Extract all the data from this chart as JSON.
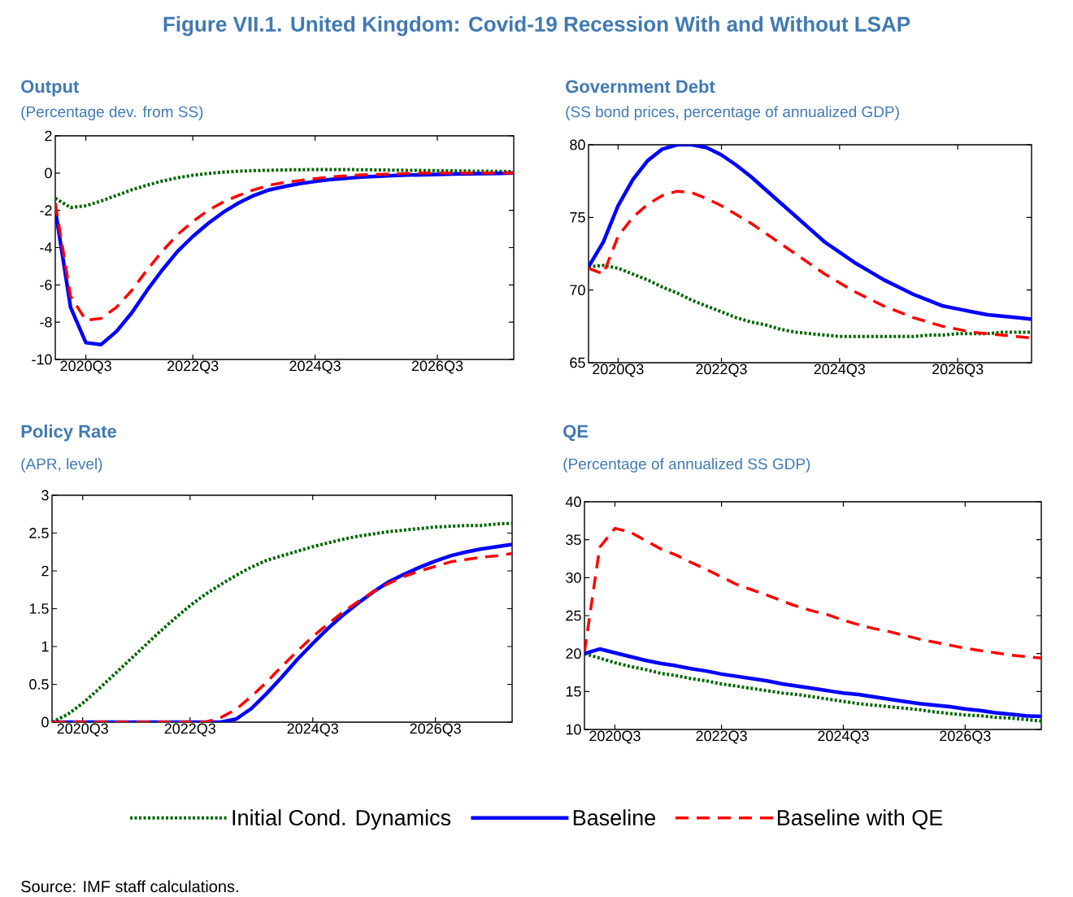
{
  "chart_data": [
    {
      "type": "line",
      "title": "Output",
      "subtitle": "(Percentage dev. from SS)",
      "legend": "bottom",
      "annotations": [
        "Figure VII.1. United Kingdom: Covid-19 Recession With and Without LSAP",
        "Source: IMF staff calculations."
      ],
      "categories": [
        null,
        null,
        "2020Q3",
        null,
        null,
        null,
        null,
        null,
        null,
        "2022Q3",
        null,
        null,
        null,
        null,
        null,
        null,
        null,
        "2024Q3",
        null,
        null,
        null,
        null,
        null,
        null,
        null,
        "2026Q3",
        null,
        null,
        null,
        null,
        null
      ],
      "ylim": [
        -10,
        2
      ],
      "yticks": [
        -10,
        -8,
        -6,
        -4,
        -2,
        0,
        2
      ],
      "series": [
        {
          "name": "Initial Cond. Dynamics",
          "color": "#006600",
          "line_style": "dotted",
          "values": [
            -1.35,
            -1.85,
            -1.75,
            -1.5,
            -1.2,
            -0.9,
            -0.65,
            -0.43,
            -0.25,
            -0.12,
            -0.02,
            0.05,
            0.1,
            0.13,
            0.15,
            0.17,
            0.18,
            0.19,
            0.19,
            0.19,
            0.18,
            0.17,
            0.16,
            0.15,
            0.14,
            0.13,
            0.12,
            0.11,
            0.1,
            0.09,
            0.08
          ]
        },
        {
          "name": "Baseline",
          "color": "#0000ff",
          "line_style": "solid",
          "values": [
            -1.95,
            -7.2,
            -9.1,
            -9.2,
            -8.5,
            -7.5,
            -6.3,
            -5.2,
            -4.2,
            -3.4,
            -2.7,
            -2.1,
            -1.6,
            -1.2,
            -0.9,
            -0.72,
            -0.57,
            -0.45,
            -0.35,
            -0.28,
            -0.22,
            -0.18,
            -0.14,
            -0.11,
            -0.09,
            -0.07,
            -0.05,
            -0.04,
            -0.03,
            -0.02,
            0
          ]
        },
        {
          "name": "Baseline with QE",
          "color": "#ff0000",
          "line_style": "dashed",
          "values": [
            -1.6,
            -6.6,
            -7.9,
            -7.8,
            -7.2,
            -6.3,
            -5.2,
            -4.2,
            -3.3,
            -2.6,
            -2.0,
            -1.55,
            -1.2,
            -0.9,
            -0.65,
            -0.5,
            -0.4,
            -0.3,
            -0.2,
            -0.15,
            -0.1,
            -0.07,
            -0.05,
            -0.02,
            0,
            0,
            0,
            0,
            0,
            0,
            0
          ]
        }
      ]
    },
    {
      "type": "line",
      "title": "Government Debt",
      "subtitle": "(SS bond prices, percentage of annualized GDP)",
      "categories": [
        null,
        null,
        "2020Q3",
        null,
        null,
        null,
        null,
        null,
        null,
        "2022Q3",
        null,
        null,
        null,
        null,
        null,
        null,
        null,
        "2024Q3",
        null,
        null,
        null,
        null,
        null,
        null,
        null,
        "2026Q3",
        null,
        null,
        null,
        null,
        null
      ],
      "ylim": [
        65,
        80
      ],
      "yticks": [
        65,
        70,
        75,
        80
      ],
      "series": [
        {
          "color": "#006600",
          "line_style": "dotted",
          "values": [
            71.6,
            71.7,
            71.5,
            71.1,
            70.7,
            70.2,
            69.8,
            69.3,
            68.9,
            68.5,
            68.1,
            67.8,
            67.6,
            67.3,
            67.1,
            67.0,
            66.9,
            66.8,
            66.8,
            66.8,
            66.8,
            66.8,
            66.8,
            66.9,
            66.9,
            67.0,
            67.0,
            67.0,
            67.1,
            67.1,
            67.1
          ]
        },
        {
          "color": "#0000ff",
          "line_style": "solid",
          "values": [
            71.6,
            73.3,
            75.8,
            77.6,
            78.9,
            79.7,
            80.0,
            80.0,
            79.8,
            79.3,
            78.6,
            77.8,
            76.9,
            76.0,
            75.1,
            74.2,
            73.3,
            72.6,
            71.9,
            71.3,
            70.7,
            70.2,
            69.7,
            69.3,
            68.9,
            68.7,
            68.5,
            68.3,
            68.2,
            68.1,
            68.0
          ]
        },
        {
          "color": "#ff0000",
          "line_style": "dashed",
          "values": [
            71.5,
            71.1,
            73.7,
            75.0,
            75.9,
            76.5,
            76.8,
            76.7,
            76.3,
            75.8,
            75.2,
            74.6,
            73.9,
            73.2,
            72.5,
            71.8,
            71.1,
            70.5,
            69.9,
            69.4,
            68.9,
            68.5,
            68.1,
            67.8,
            67.5,
            67.3,
            67.1,
            67.0,
            66.9,
            66.8,
            66.7
          ]
        }
      ]
    },
    {
      "type": "line",
      "title": "Policy Rate",
      "subtitle": "(APR, level)",
      "categories": [
        null,
        null,
        "2020Q3",
        null,
        null,
        null,
        null,
        null,
        null,
        "2022Q3",
        null,
        null,
        null,
        null,
        null,
        null,
        null,
        "2024Q3",
        null,
        null,
        null,
        null,
        null,
        null,
        null,
        "2026Q3",
        null,
        null,
        null,
        null,
        null
      ],
      "ylim": [
        0,
        3
      ],
      "yticks": [
        0,
        0.5,
        1,
        1.5,
        2,
        2.5,
        3
      ],
      "series": [
        {
          "color": "#006600",
          "line_style": "dotted",
          "values": [
            0,
            0.1,
            0.25,
            0.43,
            0.62,
            0.81,
            1.0,
            1.19,
            1.37,
            1.54,
            1.69,
            1.82,
            1.94,
            2.05,
            2.14,
            2.2,
            2.26,
            2.32,
            2.37,
            2.42,
            2.46,
            2.49,
            2.52,
            2.54,
            2.56,
            2.58,
            2.59,
            2.6,
            2.6,
            2.62,
            2.63
          ]
        },
        {
          "color": "#0000ff",
          "line_style": "solid",
          "values": [
            0,
            0,
            0,
            0,
            0,
            0,
            0,
            0,
            0,
            0,
            0,
            0,
            0.04,
            0.18,
            0.38,
            0.6,
            0.83,
            1.04,
            1.24,
            1.42,
            1.58,
            1.73,
            1.86,
            1.96,
            2.05,
            2.13,
            2.2,
            2.25,
            2.29,
            2.32,
            2.35
          ]
        },
        {
          "color": "#ff0000",
          "line_style": "dashed",
          "values": [
            0,
            0,
            0,
            0,
            0,
            0,
            0,
            0,
            0,
            0,
            0,
            0.06,
            0.17,
            0.34,
            0.53,
            0.74,
            0.94,
            1.13,
            1.3,
            1.46,
            1.6,
            1.73,
            1.84,
            1.93,
            2.0,
            2.06,
            2.12,
            2.15,
            2.18,
            2.2,
            2.23
          ]
        }
      ]
    },
    {
      "type": "line",
      "title": "QE",
      "subtitle": "(Percentage of annualized SS GDP)",
      "categories": [
        null,
        null,
        "2020Q3",
        null,
        null,
        null,
        null,
        null,
        null,
        "2022Q3",
        null,
        null,
        null,
        null,
        null,
        null,
        null,
        "2024Q3",
        null,
        null,
        null,
        null,
        null,
        null,
        null,
        "2026Q3",
        null,
        null,
        null,
        null,
        null
      ],
      "ylim": [
        10,
        40
      ],
      "yticks": [
        10,
        15,
        20,
        25,
        30,
        35,
        40
      ],
      "series": [
        {
          "color": "#006600",
          "line_style": "dotted",
          "values": [
            20.0,
            19.4,
            18.8,
            18.3,
            17.9,
            17.4,
            17.1,
            16.7,
            16.4,
            16.0,
            15.7,
            15.4,
            15.1,
            14.8,
            14.6,
            14.3,
            14.0,
            13.7,
            13.4,
            13.2,
            13.0,
            12.8,
            12.6,
            12.3,
            12.1,
            11.9,
            11.8,
            11.6,
            11.5,
            11.3,
            11.1
          ]
        },
        {
          "color": "#0000ff",
          "line_style": "solid",
          "values": [
            20.0,
            20.6,
            20.1,
            19.6,
            19.1,
            18.7,
            18.4,
            18.0,
            17.7,
            17.3,
            17.0,
            16.7,
            16.4,
            16.0,
            15.7,
            15.4,
            15.1,
            14.8,
            14.6,
            14.3,
            14.0,
            13.7,
            13.4,
            13.2,
            13.0,
            12.7,
            12.5,
            12.2,
            12.0,
            11.8,
            11.7
          ]
        },
        {
          "color": "#ff0000",
          "line_style": "dashed",
          "values": [
            20.2,
            34.0,
            36.5,
            36.0,
            34.9,
            33.8,
            33.0,
            32.0,
            31.1,
            30.1,
            29.1,
            28.4,
            27.7,
            26.9,
            26.2,
            25.6,
            25.1,
            24.4,
            23.8,
            23.3,
            22.9,
            22.4,
            21.9,
            21.5,
            21.1,
            20.7,
            20.4,
            20.1,
            19.8,
            19.6,
            19.4
          ]
        }
      ]
    }
  ]
}
